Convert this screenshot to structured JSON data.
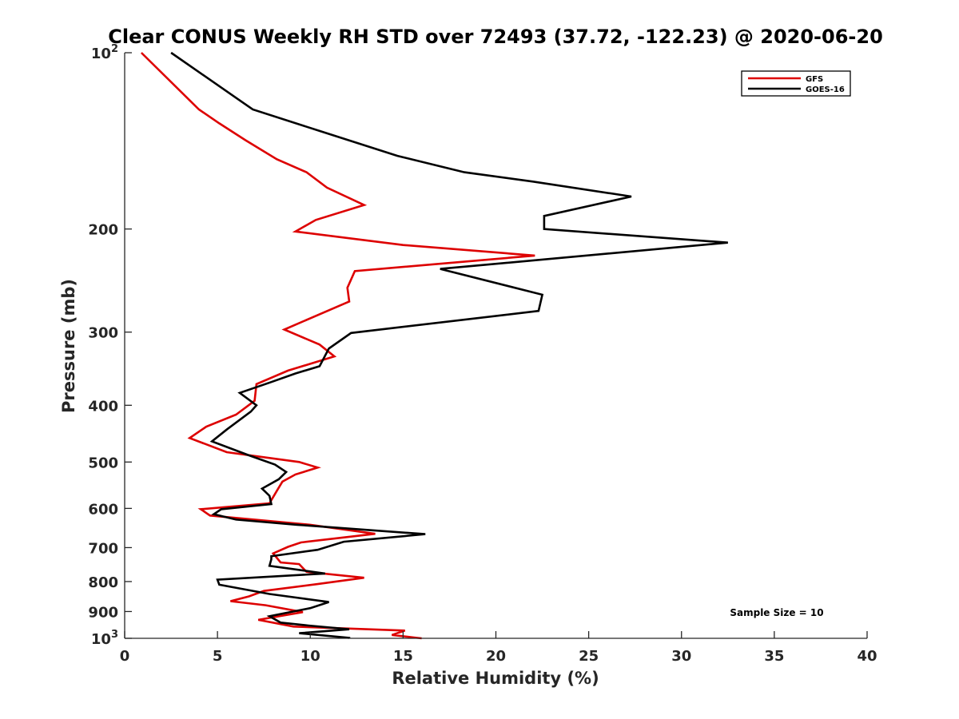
{
  "chart_data": {
    "type": "line",
    "title": "Clear CONUS Weekly RH STD over 72493 (37.72, -122.23) @ 2020-06-20",
    "xlabel": "Relative Humidity (%)",
    "ylabel": "Pressure (mb)",
    "xlim": [
      0,
      40
    ],
    "ylim": [
      100,
      1000
    ],
    "y_scale": "log",
    "y_reversed": true,
    "grid": false,
    "legend_position": "top-right",
    "x_ticks": [
      "0",
      "5",
      "10",
      "15",
      "20",
      "25",
      "30",
      "35",
      "40"
    ],
    "y_ticks": [
      {
        "value": 100,
        "base": "10",
        "exp": "2"
      },
      {
        "value": 200,
        "base": "200",
        "exp": ""
      },
      {
        "value": 300,
        "base": "300",
        "exp": ""
      },
      {
        "value": 400,
        "base": "400",
        "exp": ""
      },
      {
        "value": 500,
        "base": "500",
        "exp": ""
      },
      {
        "value": 600,
        "base": "600",
        "exp": ""
      },
      {
        "value": 700,
        "base": "700",
        "exp": ""
      },
      {
        "value": 800,
        "base": "800",
        "exp": ""
      },
      {
        "value": 900,
        "base": "900",
        "exp": ""
      },
      {
        "value": 1000,
        "base": "10",
        "exp": "3"
      }
    ],
    "annotation": "Sample Size = 10",
    "series": [
      {
        "name": "GFS",
        "color": "#dd0000",
        "points": [
          [
            0.9,
            100
          ],
          [
            4.0,
            125
          ],
          [
            5.1,
            132
          ],
          [
            6.5,
            141
          ],
          [
            8.2,
            152
          ],
          [
            9.8,
            160
          ],
          [
            10.9,
            170
          ],
          [
            12.9,
            182
          ],
          [
            10.3,
            193
          ],
          [
            9.2,
            202
          ],
          [
            15.0,
            213
          ],
          [
            22.1,
            222
          ],
          [
            12.4,
            236
          ],
          [
            12.0,
            252
          ],
          [
            12.1,
            266
          ],
          [
            8.6,
            297
          ],
          [
            10.5,
            315
          ],
          [
            11.3,
            330
          ],
          [
            8.8,
            349
          ],
          [
            7.1,
            368
          ],
          [
            7.0,
            393
          ],
          [
            6.0,
            415
          ],
          [
            4.4,
            435
          ],
          [
            3.5,
            455
          ],
          [
            5.5,
            481
          ],
          [
            9.4,
            500
          ],
          [
            10.4,
            511
          ],
          [
            9.2,
            525
          ],
          [
            8.5,
            540
          ],
          [
            8.2,
            560
          ],
          [
            7.8,
            588
          ],
          [
            4.1,
            602
          ],
          [
            4.6,
            617
          ],
          [
            10.0,
            640
          ],
          [
            13.5,
            663
          ],
          [
            9.5,
            686
          ],
          [
            8.8,
            698
          ],
          [
            8.0,
            716
          ],
          [
            8.4,
            742
          ],
          [
            9.4,
            747
          ],
          [
            9.8,
            770
          ],
          [
            12.9,
            788
          ],
          [
            10.4,
            808
          ],
          [
            7.5,
            830
          ],
          [
            6.7,
            848
          ],
          [
            5.7,
            864
          ],
          [
            7.6,
            878
          ],
          [
            9.6,
            902
          ],
          [
            7.2,
            930
          ],
          [
            9.1,
            955
          ],
          [
            15.1,
            970
          ],
          [
            14.4,
            987
          ],
          [
            15.6,
            997
          ],
          [
            16.0,
            1000
          ]
        ]
      },
      {
        "name": "GOES-16",
        "color": "#000000",
        "points": [
          [
            2.5,
            100
          ],
          [
            6.9,
            125
          ],
          [
            10.5,
            136
          ],
          [
            14.7,
            150
          ],
          [
            18.3,
            160
          ],
          [
            22.0,
            166
          ],
          [
            27.3,
            176
          ],
          [
            22.6,
            190
          ],
          [
            22.6,
            200
          ],
          [
            32.5,
            211
          ],
          [
            17.0,
            234
          ],
          [
            22.5,
            259
          ],
          [
            22.3,
            276
          ],
          [
            12.2,
            301
          ],
          [
            11.0,
            320
          ],
          [
            10.5,
            343
          ],
          [
            9.2,
            353
          ],
          [
            7.9,
            365
          ],
          [
            6.2,
            381
          ],
          [
            7.1,
            400
          ],
          [
            6.8,
            410
          ],
          [
            5.5,
            440
          ],
          [
            4.7,
            461
          ],
          [
            6.7,
            487
          ],
          [
            8.1,
            505
          ],
          [
            8.7,
            520
          ],
          [
            8.3,
            535
          ],
          [
            7.4,
            555
          ],
          [
            7.8,
            571
          ],
          [
            7.9,
            590
          ],
          [
            5.2,
            602
          ],
          [
            4.8,
            614
          ],
          [
            6.0,
            627
          ],
          [
            9.3,
            640
          ],
          [
            16.2,
            664
          ],
          [
            11.8,
            684
          ],
          [
            10.4,
            706
          ],
          [
            7.9,
            724
          ],
          [
            7.9,
            733
          ],
          [
            7.8,
            752
          ],
          [
            10.8,
            775
          ],
          [
            5.0,
            794
          ],
          [
            5.1,
            810
          ],
          [
            7.8,
            840
          ],
          [
            11.0,
            867
          ],
          [
            10.0,
            888
          ],
          [
            7.8,
            917
          ],
          [
            8.4,
            940
          ],
          [
            9.9,
            951
          ],
          [
            12.1,
            965
          ],
          [
            9.4,
            980
          ],
          [
            12.1,
            998
          ],
          [
            12.1,
            1000
          ]
        ]
      }
    ]
  }
}
